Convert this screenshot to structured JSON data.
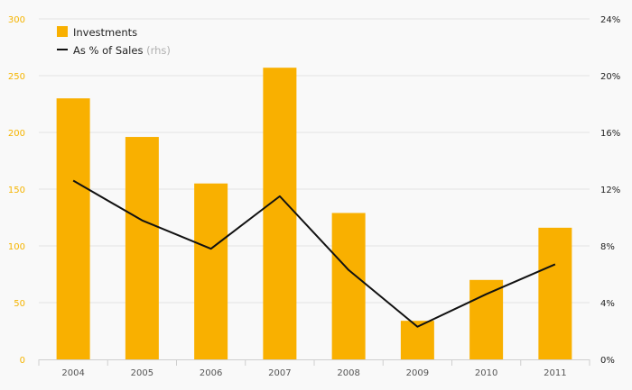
{
  "chart_data": {
    "type": "bar",
    "categories": [
      "2004",
      "2005",
      "2006",
      "2007",
      "2008",
      "2009",
      "2010",
      "2011"
    ],
    "series": [
      {
        "name": "Investments",
        "type": "bar",
        "axis": "left",
        "color": "#f9b000",
        "values": [
          230,
          196,
          155,
          257,
          129,
          34,
          70,
          116
        ]
      },
      {
        "name": "As % of Sales",
        "name_suffix": "(rhs)",
        "type": "line",
        "axis": "right",
        "color": "#111111",
        "values": [
          12.6,
          9.8,
          7.8,
          11.5,
          6.3,
          2.3,
          4.6,
          6.7
        ]
      }
    ],
    "ylim_left": [
      0,
      300
    ],
    "yticks_left": [
      "0",
      "50",
      "100",
      "150",
      "200",
      "250",
      "300"
    ],
    "ylim_right": [
      0,
      24
    ],
    "yticks_right": [
      "0%",
      "4%",
      "8%",
      "12%",
      "16%",
      "20%",
      "24%"
    ],
    "grid": "horizontal",
    "legend": "top-left",
    "colors": {
      "bar": "#f9b000",
      "line": "#111111",
      "left_axis_text": "#f5b400",
      "background": "#f9f9f9"
    }
  }
}
